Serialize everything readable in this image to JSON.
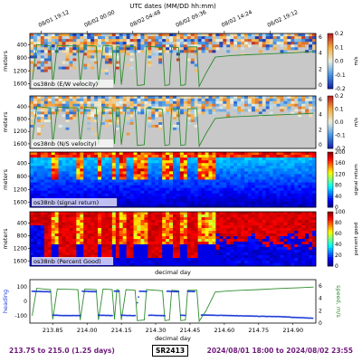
{
  "chart_data": {
    "type": "heatmap",
    "x_axis": {
      "top_label": "UTC dates (MM/DD hh:mm)",
      "top_ticks": [
        "08/01 19:12",
        "08/02 00:00",
        "08/02 04:48",
        "08/02 09:36",
        "08/02 14:24",
        "08/02 19:12"
      ],
      "top_tick_positions": [
        213.8,
        214.0,
        214.2,
        214.4,
        214.6,
        214.8
      ],
      "bottom_label": "decimal day",
      "bottom_ticks": [
        "213.85",
        "214.00",
        "214.15",
        "214.30",
        "214.45",
        "214.60",
        "214.75",
        "214.90"
      ],
      "range": [
        213.75,
        215.0
      ]
    },
    "depth_ticks": [
      "400",
      "800",
      "1200",
      "1600"
    ],
    "depth_range": [
      50,
      1750
    ],
    "panels": [
      {
        "label": "os38nb (E/W velocity)",
        "ylabel": "meters",
        "colorbar_label": "m/s",
        "colorbar_ticks": [
          "0.2",
          "0.1",
          "0.0",
          "-0.1",
          "-0.2"
        ],
        "colorbar_range": [
          -0.2,
          0.2
        ],
        "colormap": "diverging",
        "right_ticks": [
          "6",
          "4",
          "2",
          "0"
        ]
      },
      {
        "label": "os38nb (N/S velocity)",
        "ylabel": "meters",
        "colorbar_label": "m/s",
        "colorbar_ticks": [
          "0.2",
          "0.1",
          "0.0",
          "-0.1",
          "-0.2"
        ],
        "colorbar_range": [
          -0.2,
          0.2
        ],
        "colormap": "diverging",
        "right_ticks": [
          "6",
          "4",
          "2",
          "0"
        ]
      },
      {
        "label": "os38nb (signal return)",
        "ylabel": "meters",
        "colorbar_label": "signal return",
        "colorbar_ticks": [
          "200",
          "160",
          "120",
          "80",
          "40",
          "0"
        ],
        "colorbar_range": [
          0,
          200
        ],
        "colormap": "jet"
      },
      {
        "label": "os38nb (Percent Good)",
        "ylabel": "meters",
        "colorbar_label": "percent good",
        "colorbar_ticks": [
          "100",
          "80",
          "60",
          "40",
          "20",
          "0"
        ],
        "colorbar_range": [
          0,
          100
        ],
        "colormap": "jet"
      }
    ],
    "line_panel": {
      "left_label": "heading",
      "left_ticks": [
        "100",
        "0",
        "-100"
      ],
      "left_range": [
        -150,
        150
      ],
      "right_label": "speed, m/s",
      "right_ticks": [
        "6",
        "4",
        "2",
        "0"
      ],
      "right_range": [
        0,
        7
      ],
      "heading_points": [
        [
          213.76,
          70
        ],
        [
          213.8,
          68
        ],
        [
          213.84,
          66
        ],
        [
          213.85,
          -95
        ],
        [
          213.88,
          -97
        ],
        [
          213.93,
          -98
        ],
        [
          213.97,
          -98
        ],
        [
          213.98,
          70
        ],
        [
          214.01,
          68
        ],
        [
          214.04,
          67
        ],
        [
          214.05,
          -95
        ],
        [
          214.08,
          -97
        ],
        [
          214.11,
          -98
        ],
        [
          214.12,
          70
        ],
        [
          214.14,
          68
        ],
        [
          214.15,
          -96
        ],
        [
          214.18,
          -97
        ],
        [
          214.21,
          -98
        ],
        [
          214.22,
          -10
        ],
        [
          214.23,
          70
        ],
        [
          214.26,
          68
        ],
        [
          214.27,
          -96
        ],
        [
          214.3,
          -97
        ],
        [
          214.34,
          -99
        ],
        [
          214.35,
          70
        ],
        [
          214.38,
          68
        ],
        [
          214.4,
          66
        ],
        [
          214.41,
          -96
        ],
        [
          214.43,
          -97
        ],
        [
          214.44,
          70
        ],
        [
          214.47,
          68
        ],
        [
          214.5,
          -94
        ],
        [
          214.55,
          -96
        ],
        [
          214.6,
          -97
        ],
        [
          214.65,
          -99
        ],
        [
          214.7,
          -101
        ],
        [
          214.75,
          -103
        ],
        [
          214.8,
          -104
        ],
        [
          214.85,
          -106
        ],
        [
          214.9,
          -110
        ],
        [
          214.95,
          -114
        ],
        [
          214.99,
          -116
        ]
      ],
      "speed_points": [
        [
          213.76,
          1.2
        ],
        [
          213.78,
          5.6
        ],
        [
          213.84,
          5.4
        ],
        [
          213.85,
          0.6
        ],
        [
          213.87,
          5.5
        ],
        [
          213.96,
          5.4
        ],
        [
          213.97,
          0.5
        ],
        [
          213.99,
          5.5
        ],
        [
          214.04,
          5.4
        ],
        [
          214.05,
          0.5
        ],
        [
          214.07,
          5.5
        ],
        [
          214.11,
          5.4
        ],
        [
          214.12,
          0.6
        ],
        [
          214.13,
          5.4
        ],
        [
          214.14,
          5.3
        ],
        [
          214.15,
          0.5
        ],
        [
          214.17,
          5.4
        ],
        [
          214.21,
          5.3
        ],
        [
          214.22,
          0.4
        ],
        [
          214.25,
          0.5
        ],
        [
          214.26,
          5.4
        ],
        [
          214.33,
          5.2
        ],
        [
          214.34,
          0.4
        ],
        [
          214.36,
          0.5
        ],
        [
          214.37,
          5.3
        ],
        [
          214.4,
          5.2
        ],
        [
          214.41,
          0.4
        ],
        [
          214.43,
          0.5
        ],
        [
          214.44,
          5.3
        ],
        [
          214.48,
          5.3
        ],
        [
          214.49,
          0.3
        ],
        [
          214.52,
          2.0
        ],
        [
          214.56,
          5.0
        ],
        [
          214.63,
          5.2
        ],
        [
          214.68,
          5.3
        ],
        [
          214.75,
          5.4
        ],
        [
          214.8,
          5.5
        ],
        [
          214.86,
          5.6
        ],
        [
          214.93,
          5.7
        ],
        [
          214.99,
          5.8
        ]
      ]
    },
    "speed_overlay_points": [
      [
        213.76,
        0.8
      ],
      [
        213.78,
        5.6
      ],
      [
        213.84,
        5.4
      ],
      [
        213.85,
        0.6
      ],
      [
        213.87,
        5.5
      ],
      [
        213.96,
        5.4
      ],
      [
        213.97,
        0.5
      ],
      [
        213.99,
        5.5
      ],
      [
        214.04,
        5.4
      ],
      [
        214.05,
        0.5
      ],
      [
        214.07,
        5.5
      ],
      [
        214.11,
        5.4
      ],
      [
        214.12,
        0.6
      ],
      [
        214.13,
        5.4
      ],
      [
        214.14,
        5.3
      ],
      [
        214.15,
        0.5
      ],
      [
        214.17,
        5.4
      ],
      [
        214.21,
        5.3
      ],
      [
        214.22,
        0.4
      ],
      [
        214.25,
        0.5
      ],
      [
        214.26,
        5.4
      ],
      [
        214.33,
        5.2
      ],
      [
        214.34,
        0.4
      ],
      [
        214.36,
        0.5
      ],
      [
        214.37,
        5.3
      ],
      [
        214.4,
        5.2
      ],
      [
        214.41,
        0.4
      ],
      [
        214.43,
        0.5
      ],
      [
        214.44,
        5.3
      ],
      [
        214.48,
        5.3
      ],
      [
        214.49,
        0.3
      ],
      [
        214.52,
        2.0
      ],
      [
        214.56,
        4.0
      ],
      [
        214.63,
        4.2
      ],
      [
        214.7,
        4.3
      ],
      [
        214.78,
        4.4
      ],
      [
        214.86,
        4.5
      ],
      [
        214.93,
        4.6
      ],
      [
        214.99,
        4.7
      ]
    ],
    "nodata_spans": [
      [
        213.84,
        213.87
      ],
      [
        213.96,
        213.99
      ],
      [
        214.04,
        214.07
      ],
      [
        214.11,
        214.13
      ],
      [
        214.14,
        214.17
      ],
      [
        214.21,
        214.26
      ],
      [
        214.33,
        214.37
      ],
      [
        214.4,
        214.44
      ],
      [
        214.48,
        214.56
      ]
    ]
  },
  "footer": {
    "left": "213.75 to 215.0 (1.25 days)",
    "cruise": "SR2413",
    "right": "2024/08/01 18:00 to 2024/08/02 23:55"
  },
  "colors": {
    "speed_line": "#2e8b2e",
    "heading_points": "#1f3fd6",
    "nodata": "#c8c8c8",
    "footer_text": "#6e1a7a"
  }
}
